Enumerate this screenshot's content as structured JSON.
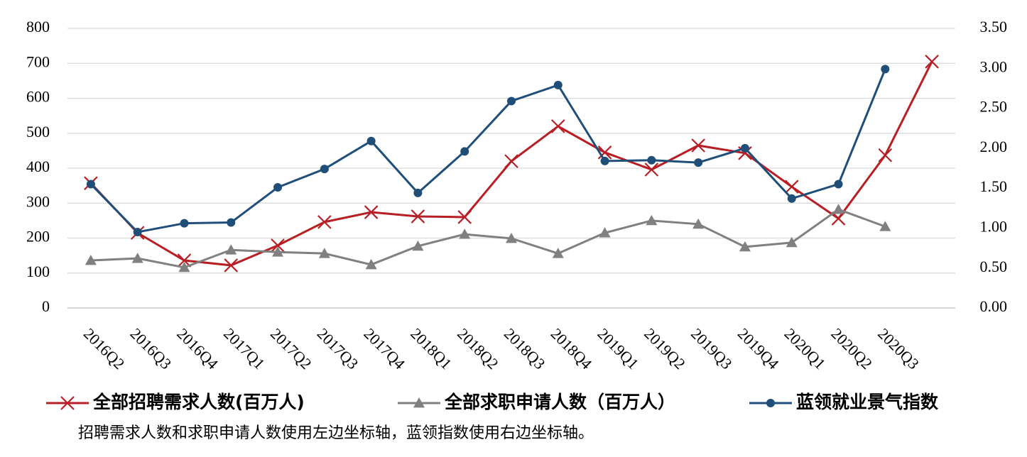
{
  "chart_data": {
    "type": "line",
    "categories": [
      "2016Q2",
      "2016Q3",
      "2016Q4",
      "2017Q1",
      "2017Q2",
      "2017Q3",
      "2017Q4",
      "2018Q1",
      "2018Q2",
      "2018Q3",
      "2018Q4",
      "2019Q1",
      "2019Q2",
      "2019Q3",
      "2019Q4",
      "2020Q1",
      "2020Q2",
      "2020Q3",
      null
    ],
    "series": [
      {
        "name": "全部招聘需求人数(百万人)",
        "color": "#b81f25",
        "marker": "x",
        "values": [
          357,
          215,
          136,
          122,
          179,
          246,
          274,
          262,
          260,
          420,
          520,
          445,
          396,
          465,
          443,
          347,
          256,
          437,
          705
        ]
      },
      {
        "name": "全部求职申请人数（百万人）",
        "color": "#808080",
        "marker": "triangle",
        "values": [
          136,
          142,
          116,
          166,
          160,
          156,
          124,
          177,
          211,
          199,
          156,
          215,
          250,
          240,
          175,
          187,
          282,
          233,
          null
        ]
      },
      {
        "name": "蓝领就业景气指数",
        "color": "#1f4e79",
        "marker": "circle",
        "axis": "y2",
        "values": [
          1.55,
          0.95,
          1.06,
          1.07,
          1.51,
          1.74,
          2.09,
          1.44,
          1.96,
          2.59,
          2.79,
          1.84,
          1.85,
          1.82,
          2.0,
          1.37,
          1.55,
          2.99,
          null
        ]
      }
    ],
    "ylim": [
      0,
      800
    ],
    "yticks": [
      0,
      100,
      200,
      300,
      400,
      500,
      600,
      700,
      800
    ],
    "y2lim": [
      0,
      3.5
    ],
    "y2ticks": [
      {
        "value": 0,
        "label": "0.00"
      },
      {
        "value": 0.5,
        "label": "0.50"
      },
      {
        "value": 1,
        "label": "1.00"
      },
      {
        "value": 1.5,
        "label": "1.50"
      },
      {
        "value": 2,
        "label": "2.00"
      },
      {
        "value": 2.5,
        "label": "2.50"
      },
      {
        "value": 3,
        "label": "3.00"
      },
      {
        "value": 3.5,
        "label": "3.50"
      }
    ],
    "grid": true,
    "legend": "bottom",
    "note": "招聘需求人数和求职申请人数使用左边坐标轴，蓝领指数使用右边坐标轴。"
  }
}
